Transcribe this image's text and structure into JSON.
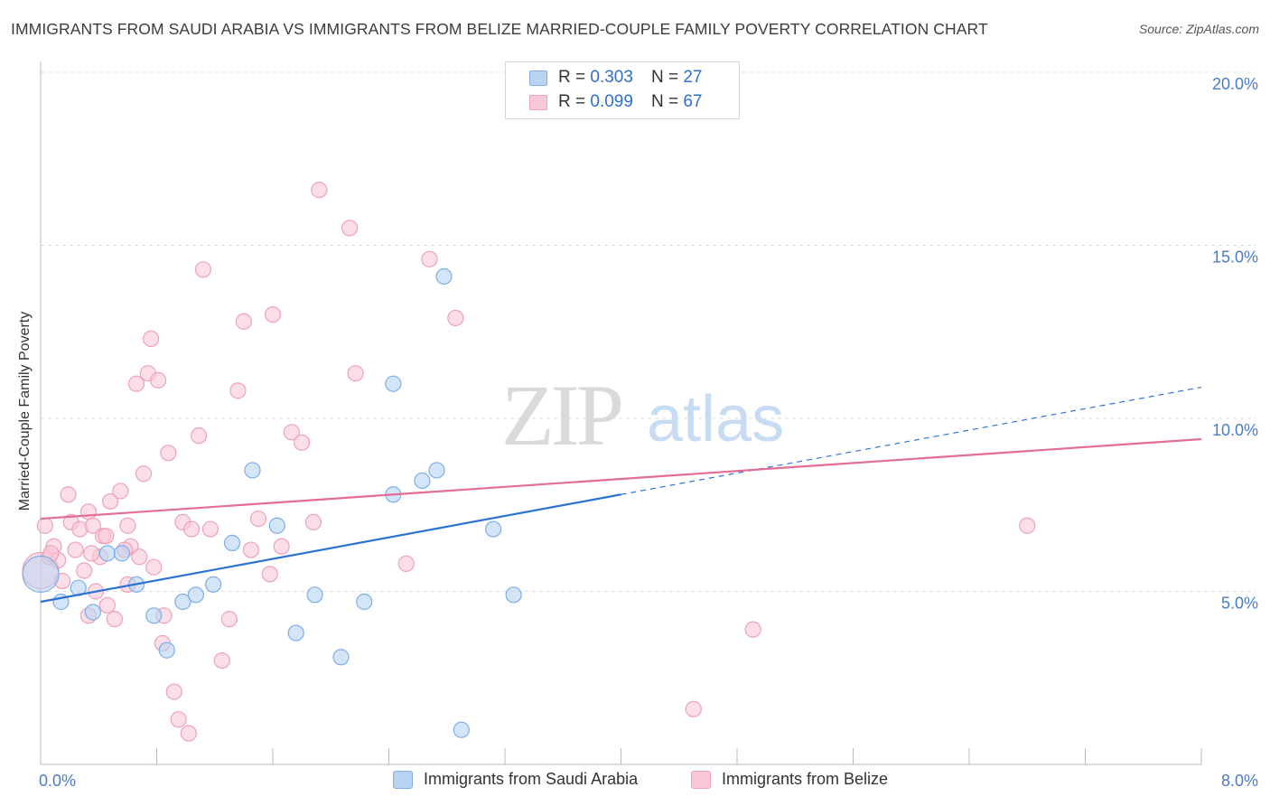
{
  "title": "IMMIGRANTS FROM SAUDI ARABIA VS IMMIGRANTS FROM BELIZE MARRIED-COUPLE FAMILY POVERTY CORRELATION CHART",
  "source": "Source: ZipAtlas.com",
  "watermark": {
    "zip": "ZIP",
    "atlas": "atlas"
  },
  "legend": {
    "rows": [
      {
        "r_label": "R = ",
        "r_value": "0.303",
        "n_label": "N = ",
        "n_value": "27"
      },
      {
        "r_label": "R = ",
        "r_value": "0.099",
        "n_label": "N = ",
        "n_value": "67"
      }
    ]
  },
  "colors": {
    "blue_fill": "#b9d3f3",
    "blue_stroke": "#7eaee6",
    "blue_line": "#2b73d2",
    "pink_fill": "#f8c8d7",
    "pink_stroke": "#eda2ba",
    "pink_line": "#e36c98",
    "axis_text": "#4a7cc9",
    "grid": "#dcdcdc"
  },
  "chart_data": {
    "type": "scatter",
    "title": "IMMIGRANTS FROM SAUDI ARABIA VS IMMIGRANTS FROM BELIZE MARRIED-COUPLE FAMILY POVERTY CORRELATION CHART",
    "xlabel": "",
    "ylabel": "Married-Couple Family Poverty",
    "xlim": [
      0,
      8
    ],
    "ylim": [
      0,
      20
    ],
    "x_tick_labels": [
      "0.0%",
      "8.0%"
    ],
    "y_ticks": [
      5,
      10,
      15,
      20
    ],
    "y_tick_labels": [
      "5.0%",
      "10.0%",
      "15.0%",
      "20.0%"
    ],
    "grid": true,
    "legend_position": "top-center",
    "series": [
      {
        "name": "Immigrants from Saudi Arabia",
        "color": "blue",
        "R": 0.303,
        "N": 27,
        "trend": {
          "x0": 0.0,
          "y0": 4.7,
          "x1": 4.0,
          "y1": 7.8,
          "dash_to_x": 8.0,
          "dash_to_y": 10.9
        },
        "points": [
          [
            0.0,
            5.5,
            "large"
          ],
          [
            0.14,
            4.7
          ],
          [
            0.26,
            5.1
          ],
          [
            0.36,
            4.4
          ],
          [
            0.46,
            6.1
          ],
          [
            0.56,
            6.1
          ],
          [
            0.66,
            5.2
          ],
          [
            0.78,
            4.3
          ],
          [
            0.87,
            3.3
          ],
          [
            0.98,
            4.7
          ],
          [
            1.07,
            4.9
          ],
          [
            1.19,
            5.2
          ],
          [
            1.32,
            6.4
          ],
          [
            1.46,
            8.5
          ],
          [
            1.63,
            6.9
          ],
          [
            1.76,
            3.8
          ],
          [
            1.89,
            4.9
          ],
          [
            2.07,
            3.1
          ],
          [
            2.23,
            4.7
          ],
          [
            2.43,
            11.0
          ],
          [
            2.43,
            7.8
          ],
          [
            2.63,
            8.2
          ],
          [
            2.73,
            8.5
          ],
          [
            2.78,
            14.1
          ],
          [
            2.9,
            1.0
          ],
          [
            3.12,
            6.8
          ],
          [
            3.26,
            4.9
          ]
        ]
      },
      {
        "name": "Immigrants from Belize",
        "color": "pink",
        "R": 0.099,
        "N": 67,
        "trend": {
          "x0": 0.0,
          "y0": 7.1,
          "x1": 8.0,
          "y1": 9.4
        },
        "points": [
          [
            0.0,
            5.6,
            "large"
          ],
          [
            0.03,
            6.9
          ],
          [
            0.06,
            6.0
          ],
          [
            0.09,
            6.3
          ],
          [
            0.12,
            5.9
          ],
          [
            0.15,
            5.3
          ],
          [
            0.19,
            7.8
          ],
          [
            0.21,
            7.0
          ],
          [
            0.24,
            6.2
          ],
          [
            0.27,
            6.8
          ],
          [
            0.3,
            5.6
          ],
          [
            0.33,
            7.3
          ],
          [
            0.36,
            6.9
          ],
          [
            0.38,
            5.0
          ],
          [
            0.41,
            6.0
          ],
          [
            0.43,
            6.6
          ],
          [
            0.46,
            4.6
          ],
          [
            0.48,
            7.6
          ],
          [
            0.51,
            4.2
          ],
          [
            0.55,
            7.9
          ],
          [
            0.6,
            6.9
          ],
          [
            0.62,
            6.3
          ],
          [
            0.66,
            11.0
          ],
          [
            0.68,
            6.0
          ],
          [
            0.71,
            8.4
          ],
          [
            0.74,
            11.3
          ],
          [
            0.76,
            12.3
          ],
          [
            0.78,
            5.7
          ],
          [
            0.81,
            11.1
          ],
          [
            0.84,
            3.5
          ],
          [
            0.88,
            9.0
          ],
          [
            0.92,
            2.1
          ],
          [
            0.95,
            1.3
          ],
          [
            0.98,
            7.0
          ],
          [
            1.02,
            0.9
          ],
          [
            1.04,
            6.8
          ],
          [
            1.09,
            9.5
          ],
          [
            1.12,
            14.3
          ],
          [
            1.17,
            6.8
          ],
          [
            1.25,
            3.0
          ],
          [
            1.3,
            4.2
          ],
          [
            1.36,
            10.8
          ],
          [
            1.4,
            12.8
          ],
          [
            1.45,
            6.2
          ],
          [
            1.5,
            7.1
          ],
          [
            1.58,
            5.5
          ],
          [
            1.6,
            13.0
          ],
          [
            1.66,
            6.3
          ],
          [
            1.73,
            9.6
          ],
          [
            1.8,
            9.3
          ],
          [
            1.88,
            7.0
          ],
          [
            1.92,
            16.6
          ],
          [
            2.13,
            15.5
          ],
          [
            2.17,
            11.3
          ],
          [
            2.52,
            5.8
          ],
          [
            2.68,
            14.6
          ],
          [
            2.86,
            12.9
          ],
          [
            4.5,
            1.6
          ],
          [
            4.91,
            3.9
          ],
          [
            6.8,
            6.9
          ],
          [
            0.07,
            6.1
          ],
          [
            0.35,
            6.1
          ],
          [
            0.58,
            6.2
          ],
          [
            0.45,
            6.6
          ],
          [
            0.6,
            5.2
          ],
          [
            0.85,
            4.3
          ],
          [
            0.33,
            4.3
          ]
        ]
      }
    ]
  }
}
